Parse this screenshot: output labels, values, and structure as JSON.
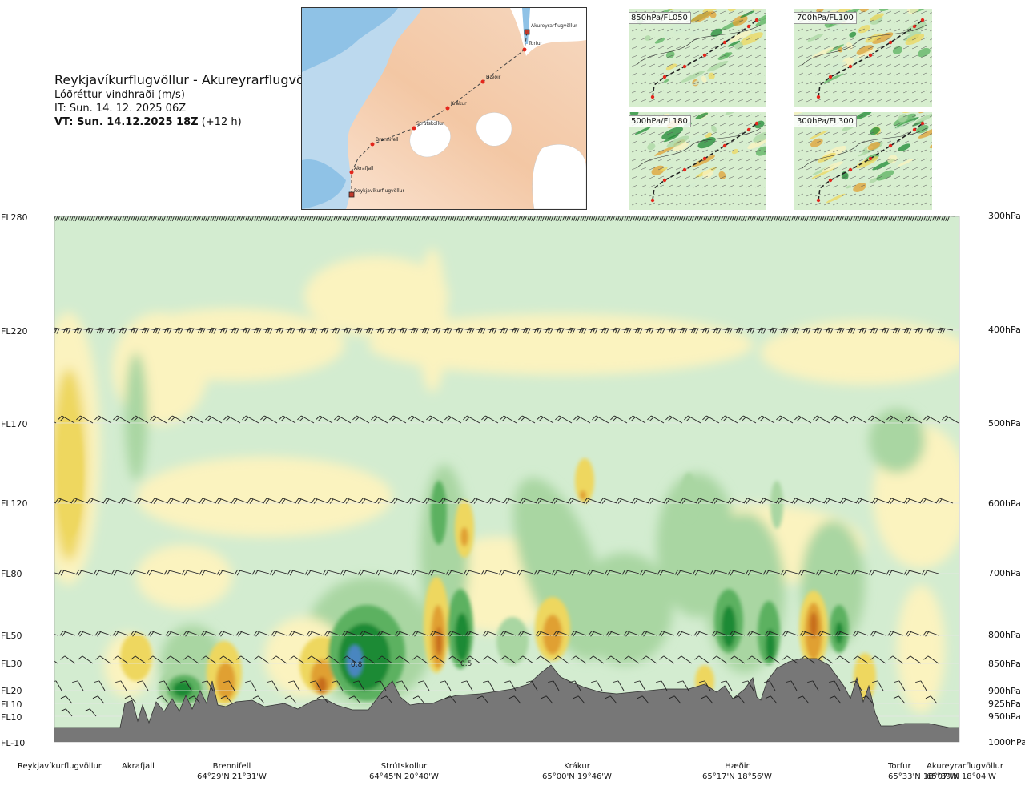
{
  "header": {
    "route": "Reykjavíkurflugvöllur - Akureyrarflugvöllur",
    "parameter": "Lóðréttur vindhraði (m/s)",
    "issue_time": "IT: Sun. 14. 12. 2025 06Z",
    "valid_prefix": "VT: Sun. 14.12.2025 18Z",
    "valid_offset": "(+12 h)"
  },
  "route_map": {
    "points": [
      "Akureyrarflugvöllur",
      "Torfur",
      "Hæðir",
      "Krákur",
      "Strútskollur",
      "Brennifell",
      "Akrafjall",
      "Reykjavíkurflugvöllur"
    ]
  },
  "level_maps": [
    {
      "label": "850hPa/FL050"
    },
    {
      "label": "700hPa/FL100"
    },
    {
      "label": "500hPa/FL180"
    },
    {
      "label": "300hPa/FL300"
    }
  ],
  "flight_levels": [
    "FL280",
    "FL220",
    "FL170",
    "FL120",
    "FL80",
    "FL50",
    "FL30",
    "FL20",
    "FL10",
    "FL10",
    "FL-10"
  ],
  "pressure_levels": [
    "300hPa",
    "400hPa",
    "500hPa",
    "600hPa",
    "700hPa",
    "800hPa",
    "850hPa",
    "900hPa",
    "925hPa",
    "950hPa",
    "1000hPa"
  ],
  "waypoints": [
    {
      "name": "Reykjavíkurflugvöllur",
      "coord": ""
    },
    {
      "name": "Akrafjall",
      "coord": ""
    },
    {
      "name": "Brennifell",
      "coord": "64°29'N 21°31'W"
    },
    {
      "name": "Strútskollur",
      "coord": "64°45'N 20°40'W"
    },
    {
      "name": "Krákur",
      "coord": "65°00'N 19°46'W"
    },
    {
      "name": "Hæðir",
      "coord": "65°17'N 18°56'W"
    },
    {
      "name": "Torfur",
      "coord": "65°33'N 18°07'W"
    },
    {
      "name": "Akureyrarflugvöllur",
      "coord": "65°39'N 18°04'W"
    }
  ],
  "chart_data": {
    "type": "heatmap",
    "title": "Reykjavíkurflugvöllur - Akureyrarflugvöllur",
    "subtitle": "Lóðréttur vindhraði (m/s)",
    "xlabel": "",
    "ylabel": "",
    "x_categories": [
      "Reykjavíkurflugvöllur",
      "Akrafjall",
      "Brennifell",
      "Strútskollur",
      "Krákur",
      "Hæðir",
      "Torfur",
      "Akureyrarflugvöllur"
    ],
    "y_pressure_hpa": [
      300,
      400,
      500,
      600,
      700,
      800,
      850,
      900,
      925,
      950,
      1000
    ],
    "ylim_hpa": [
      1000,
      300
    ],
    "annotations": [
      "0.8",
      "0.5"
    ],
    "colors": {
      "pale_green": "#d3ecd0",
      "light_green": "#a9d6a2",
      "mid_green": "#5bb160",
      "dark_green": "#1f8a34",
      "blue_core": "#4a86c0",
      "pale_yellow": "#fbf3bf",
      "yellow": "#eed75e",
      "orange": "#e0a033",
      "dark_orange": "#c76d1c",
      "terrain": "#777777"
    }
  }
}
